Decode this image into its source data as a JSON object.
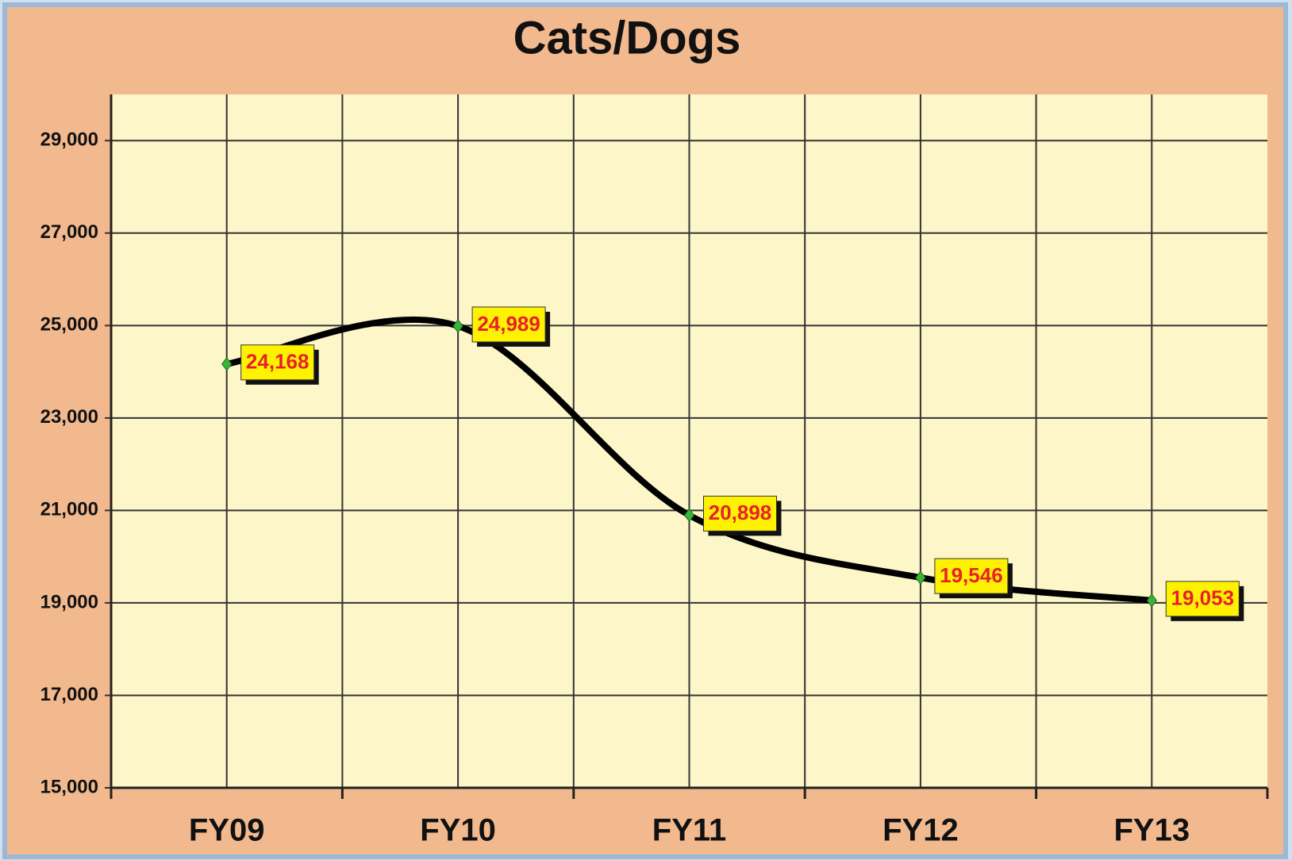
{
  "chart_data": {
    "type": "line",
    "title": "Cats/Dogs",
    "categories": [
      "FY09",
      "FY10",
      "FY11",
      "FY12",
      "FY13"
    ],
    "series": [
      {
        "name": "Cats/Dogs",
        "color": "#000000",
        "values": [
          24168,
          24989,
          20898,
          19546,
          19053
        ],
        "value_labels": [
          "24,168",
          "24,989",
          "20,898",
          "19,546",
          "19,053"
        ]
      }
    ],
    "ylim": [
      15000,
      30000
    ],
    "yticks": [
      {
        "value": 15000,
        "label": "15,000"
      },
      {
        "value": 17000,
        "label": "17,000"
      },
      {
        "value": 19000,
        "label": "19,000"
      },
      {
        "value": 21000,
        "label": "21,000"
      },
      {
        "value": 23000,
        "label": "23,000"
      },
      {
        "value": 25000,
        "label": "25,000"
      },
      {
        "value": 27000,
        "label": "27,000"
      },
      {
        "value": 29000,
        "label": "29,000"
      }
    ],
    "grid": true,
    "smooth": true,
    "marker_color": "#3bb43b"
  }
}
